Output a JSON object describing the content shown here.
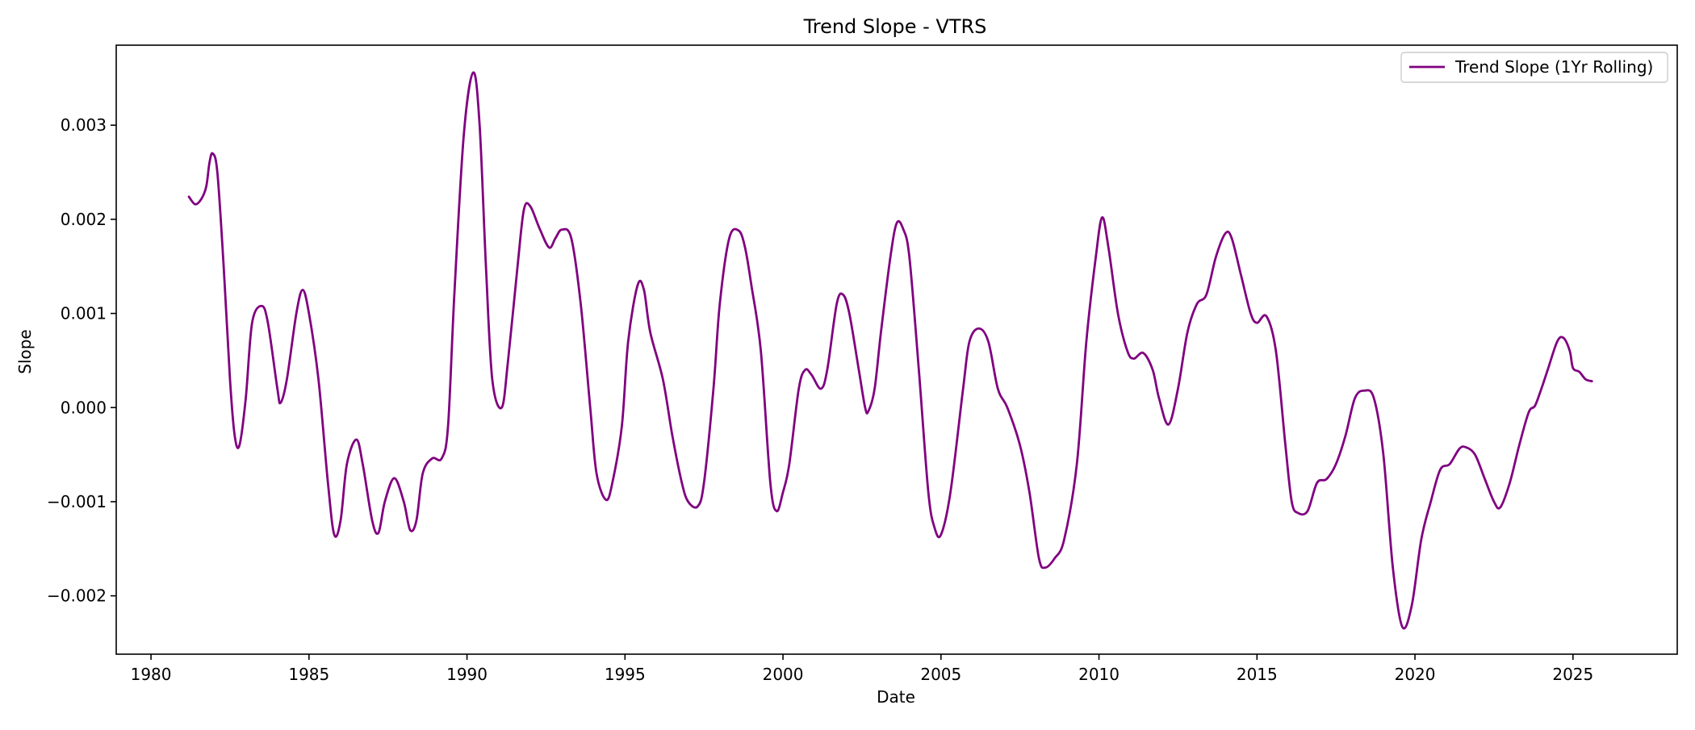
{
  "chart_data": {
    "type": "line",
    "title": "Trend Slope - VTRS",
    "xlabel": "Date",
    "ylabel": "Slope",
    "x_scale": "date",
    "xlim": [
      1978.9,
      2028.3
    ],
    "ylim": [
      -0.00262,
      0.00385
    ],
    "x_ticks": [
      1980,
      1985,
      1990,
      1995,
      2000,
      2005,
      2010,
      2015,
      2020,
      2025
    ],
    "x_tick_labels": [
      "1980",
      "1985",
      "1990",
      "1995",
      "2000",
      "2005",
      "2010",
      "2015",
      "2020",
      "2025"
    ],
    "y_ticks": [
      -0.002,
      -0.001,
      0.0,
      0.001,
      0.002,
      0.003
    ],
    "y_tick_labels": [
      "−0.002",
      "−0.001",
      "0.000",
      "0.001",
      "0.002",
      "0.003"
    ],
    "grid": false,
    "legend_position": "top-right",
    "series": [
      {
        "name": "Trend Slope (1Yr Rolling)",
        "color": "#800080",
        "points": [
          [
            1981.2,
            0.00224
          ],
          [
            1981.4,
            0.00216
          ],
          [
            1981.6,
            0.00222
          ],
          [
            1981.75,
            0.00235
          ],
          [
            1981.85,
            0.0026
          ],
          [
            1981.95,
            0.0027
          ],
          [
            1982.1,
            0.0025
          ],
          [
            1982.3,
            0.0015
          ],
          [
            1982.5,
            0.0003
          ],
          [
            1982.65,
            -0.0003
          ],
          [
            1982.8,
            -0.0004
          ],
          [
            1983.0,
            0.0001
          ],
          [
            1983.2,
            0.0009
          ],
          [
            1983.5,
            0.00108
          ],
          [
            1983.7,
            0.0009
          ],
          [
            1984.0,
            0.0002
          ],
          [
            1984.1,
            5e-05
          ],
          [
            1984.3,
            0.0003
          ],
          [
            1984.6,
            0.001
          ],
          [
            1984.8,
            0.00125
          ],
          [
            1985.0,
            0.001
          ],
          [
            1985.3,
            0.0003
          ],
          [
            1985.6,
            -0.0008
          ],
          [
            1985.8,
            -0.00135
          ],
          [
            1986.0,
            -0.0012
          ],
          [
            1986.2,
            -0.0006
          ],
          [
            1986.5,
            -0.00034
          ],
          [
            1986.7,
            -0.0006
          ],
          [
            1987.0,
            -0.0012
          ],
          [
            1987.2,
            -0.00133
          ],
          [
            1987.4,
            -0.001
          ],
          [
            1987.7,
            -0.00075
          ],
          [
            1988.0,
            -0.001
          ],
          [
            1988.2,
            -0.0013
          ],
          [
            1988.4,
            -0.0012
          ],
          [
            1988.6,
            -0.0007
          ],
          [
            1988.9,
            -0.00054
          ],
          [
            1989.2,
            -0.00054
          ],
          [
            1989.4,
            -0.0002
          ],
          [
            1989.6,
            0.0012
          ],
          [
            1989.9,
            0.0029
          ],
          [
            1990.2,
            0.00356
          ],
          [
            1990.4,
            0.003
          ],
          [
            1990.6,
            0.0015
          ],
          [
            1990.8,
            0.0003
          ],
          [
            1991.1,
            0.0
          ],
          [
            1991.3,
            0.0005
          ],
          [
            1991.6,
            0.0015
          ],
          [
            1991.8,
            0.0021
          ],
          [
            1992.0,
            0.00214
          ],
          [
            1992.3,
            0.0019
          ],
          [
            1992.6,
            0.0017
          ],
          [
            1992.8,
            0.0018
          ],
          [
            1993.0,
            0.00189
          ],
          [
            1993.3,
            0.0018
          ],
          [
            1993.6,
            0.0011
          ],
          [
            1993.9,
            0.0
          ],
          [
            1994.1,
            -0.0007
          ],
          [
            1994.4,
            -0.00098
          ],
          [
            1994.6,
            -0.0008
          ],
          [
            1994.9,
            -0.0002
          ],
          [
            1995.1,
            0.0007
          ],
          [
            1995.4,
            0.0013
          ],
          [
            1995.6,
            0.00125
          ],
          [
            1995.8,
            0.0008
          ],
          [
            1996.2,
            0.0003
          ],
          [
            1996.5,
            -0.0003
          ],
          [
            1996.8,
            -0.0008
          ],
          [
            1997.0,
            -0.001
          ],
          [
            1997.3,
            -0.00105
          ],
          [
            1997.5,
            -0.0008
          ],
          [
            1997.8,
            0.0002
          ],
          [
            1998.0,
            0.0011
          ],
          [
            1998.3,
            0.0018
          ],
          [
            1998.6,
            0.00188
          ],
          [
            1998.8,
            0.0017
          ],
          [
            1999.0,
            0.0013
          ],
          [
            1999.3,
            0.0006
          ],
          [
            1999.6,
            -0.0008
          ],
          [
            1999.8,
            -0.0011
          ],
          [
            2000.0,
            -0.0009
          ],
          [
            2000.2,
            -0.0006
          ],
          [
            2000.5,
            0.0002
          ],
          [
            2000.7,
            0.0004
          ],
          [
            2000.9,
            0.00035
          ],
          [
            2001.2,
            0.0002
          ],
          [
            2001.4,
            0.0004
          ],
          [
            2001.7,
            0.0011
          ],
          [
            2001.9,
            0.0012
          ],
          [
            2002.1,
            0.001
          ],
          [
            2002.4,
            0.0004
          ],
          [
            2002.6,
            0.0
          ],
          [
            2002.7,
            -4e-05
          ],
          [
            2002.9,
            0.0002
          ],
          [
            2003.1,
            0.0008
          ],
          [
            2003.4,
            0.0016
          ],
          [
            2003.6,
            0.00196
          ],
          [
            2003.8,
            0.0019
          ],
          [
            2004.0,
            0.0016
          ],
          [
            2004.3,
            0.0004
          ],
          [
            2004.6,
            -0.0009
          ],
          [
            2004.8,
            -0.00128
          ],
          [
            2005.0,
            -0.00135
          ],
          [
            2005.3,
            -0.0009
          ],
          [
            2005.7,
            0.0002
          ],
          [
            2005.9,
            0.0007
          ],
          [
            2006.2,
            0.00084
          ],
          [
            2006.5,
            0.0007
          ],
          [
            2006.8,
            0.0002
          ],
          [
            2007.1,
            0.0
          ],
          [
            2007.5,
            -0.0004
          ],
          [
            2007.8,
            -0.0009
          ],
          [
            2008.1,
            -0.0016
          ],
          [
            2008.3,
            -0.0017
          ],
          [
            2008.6,
            -0.0016
          ],
          [
            2008.9,
            -0.0014
          ],
          [
            2009.3,
            -0.0006
          ],
          [
            2009.6,
            0.0007
          ],
          [
            2009.9,
            0.0016
          ],
          [
            2010.1,
            0.00202
          ],
          [
            2010.3,
            0.0017
          ],
          [
            2010.6,
            0.001
          ],
          [
            2010.9,
            0.0006
          ],
          [
            2011.1,
            0.00052
          ],
          [
            2011.4,
            0.00058
          ],
          [
            2011.7,
            0.0004
          ],
          [
            2011.9,
            0.0001
          ],
          [
            2012.2,
            -0.00018
          ],
          [
            2012.5,
            0.0002
          ],
          [
            2012.8,
            0.0008
          ],
          [
            2013.1,
            0.0011
          ],
          [
            2013.4,
            0.0012
          ],
          [
            2013.7,
            0.0016
          ],
          [
            2014.0,
            0.00185
          ],
          [
            2014.2,
            0.0018
          ],
          [
            2014.5,
            0.0014
          ],
          [
            2014.8,
            0.001
          ],
          [
            2015.0,
            0.0009
          ],
          [
            2015.3,
            0.00097
          ],
          [
            2015.6,
            0.0006
          ],
          [
            2015.9,
            -0.0004
          ],
          [
            2016.1,
            -0.001
          ],
          [
            2016.3,
            -0.00112
          ],
          [
            2016.6,
            -0.0011
          ],
          [
            2016.9,
            -0.0008
          ],
          [
            2017.2,
            -0.00076
          ],
          [
            2017.5,
            -0.0006
          ],
          [
            2017.8,
            -0.0003
          ],
          [
            2018.1,
            0.0001
          ],
          [
            2018.4,
            0.00018
          ],
          [
            2018.7,
            0.0001
          ],
          [
            2019.0,
            -0.0005
          ],
          [
            2019.3,
            -0.0017
          ],
          [
            2019.6,
            -0.00233
          ],
          [
            2019.9,
            -0.0021
          ],
          [
            2020.2,
            -0.0014
          ],
          [
            2020.5,
            -0.001
          ],
          [
            2020.8,
            -0.00066
          ],
          [
            2021.1,
            -0.0006
          ],
          [
            2021.4,
            -0.00044
          ],
          [
            2021.6,
            -0.00042
          ],
          [
            2021.9,
            -0.0005
          ],
          [
            2022.2,
            -0.00075
          ],
          [
            2022.5,
            -0.001
          ],
          [
            2022.7,
            -0.00106
          ],
          [
            2023.0,
            -0.0008
          ],
          [
            2023.3,
            -0.0004
          ],
          [
            2023.6,
            -5e-05
          ],
          [
            2023.8,
            2e-05
          ],
          [
            2024.0,
            0.0002
          ],
          [
            2024.2,
            0.0004
          ],
          [
            2024.5,
            0.0007
          ],
          [
            2024.7,
            0.00074
          ],
          [
            2024.9,
            0.0006
          ],
          [
            2025.0,
            0.00042
          ],
          [
            2025.2,
            0.00038
          ],
          [
            2025.4,
            0.0003
          ],
          [
            2025.6,
            0.00028
          ]
        ]
      }
    ]
  }
}
